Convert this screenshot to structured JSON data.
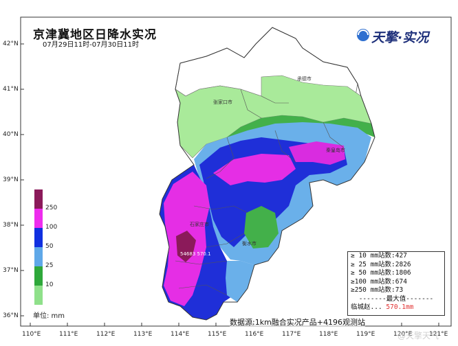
{
  "title": "京津冀地区日降水实况",
  "subtitle": "07月29日11时-07月30日11时",
  "brand": "天擎·实况",
  "latitudes": [
    "42°N",
    "41°N",
    "40°N",
    "39°N",
    "38°N",
    "37°N",
    "36°N"
  ],
  "longitudes": [
    "110°E",
    "111°E",
    "112°E",
    "113°E",
    "114°E",
    "115°E",
    "116°E",
    "117°E",
    "118°E",
    "119°E",
    "120°E",
    "121°E"
  ],
  "legend": {
    "labels": [
      "250",
      "100",
      "50",
      "25",
      "10"
    ],
    "unit": "单位: mm",
    "colors": [
      "#8b1a5a",
      "#ee2cee",
      "#1030e0",
      "#5fa8e8",
      "#2ea83a",
      "#8fe08a"
    ]
  },
  "source": "数据源:1km融合实况产品+4196观测站",
  "stats": {
    "rows": [
      "≥ 10 mm站数:427",
      "≥ 25 mm站数:2826",
      "≥ 50 mm站数:1806",
      "≥100 mm站数:674",
      "≥250 mm站数:73"
    ],
    "max_header": "-------最大值-------",
    "max_name": "临城赵...",
    "max_value": "570.1mm"
  },
  "cities": {
    "chengde": "承德市",
    "zhangjiakou": "张家口市",
    "qinhuangdao": "秦皇岛市",
    "shijiazhuang": "石家庄市",
    "hengshui": "衡水市",
    "max_point": "54683 570.1"
  },
  "watermark": "@天擎天气"
}
